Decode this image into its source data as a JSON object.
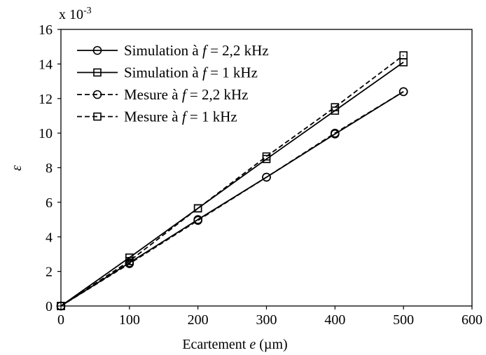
{
  "chart_data": {
    "type": "line",
    "title": "",
    "xlabel": "Ecartement e (µm)",
    "xlabel_parts": {
      "prefix": "Ecartement ",
      "var": "e",
      "suffix": " (µm)"
    },
    "ylabel": "ε",
    "y_multiplier": "x 10",
    "y_exponent": "-3",
    "xlim": [
      0,
      600
    ],
    "ylim": [
      0,
      16
    ],
    "x_ticks": [
      0,
      100,
      200,
      300,
      400,
      500,
      600
    ],
    "y_ticks": [
      0,
      2,
      4,
      6,
      8,
      10,
      12,
      14,
      16
    ],
    "grid": false,
    "legend_position": "top-left",
    "x": [
      0,
      100,
      200,
      300,
      400,
      500
    ],
    "series": [
      {
        "name": "Simulation à f = 2,2 kHz",
        "legend": {
          "prefix": "Simulation à ",
          "var": "f",
          "suffix": " = 2,2 kHz"
        },
        "style": "solid",
        "marker": "circle",
        "color": "#000000",
        "values": [
          0,
          2.5,
          5.0,
          7.45,
          9.95,
          12.4
        ]
      },
      {
        "name": "Simulation à f = 1 kHz",
        "legend": {
          "prefix": "Simulation à ",
          "var": "f",
          "suffix": " = 1 kHz"
        },
        "style": "solid",
        "marker": "square",
        "color": "#000000",
        "values": [
          0,
          2.8,
          5.65,
          8.5,
          11.3,
          14.1
        ]
      },
      {
        "name": "Mesure à f = 2,2 kHz",
        "legend": {
          "prefix": "Mesure à ",
          "var": "f",
          "suffix": " = 2,2 kHz"
        },
        "style": "dashed",
        "marker": "circle",
        "color": "#000000",
        "values": [
          0,
          2.45,
          4.95,
          7.45,
          10.0,
          12.4
        ]
      },
      {
        "name": "Mesure à f = 1 kHz",
        "legend": {
          "prefix": "Mesure à ",
          "var": "f",
          "suffix": " = 1 kHz"
        },
        "style": "dashed",
        "marker": "square",
        "color": "#000000",
        "values": [
          0,
          2.6,
          5.65,
          8.65,
          11.5,
          14.5
        ]
      }
    ]
  }
}
